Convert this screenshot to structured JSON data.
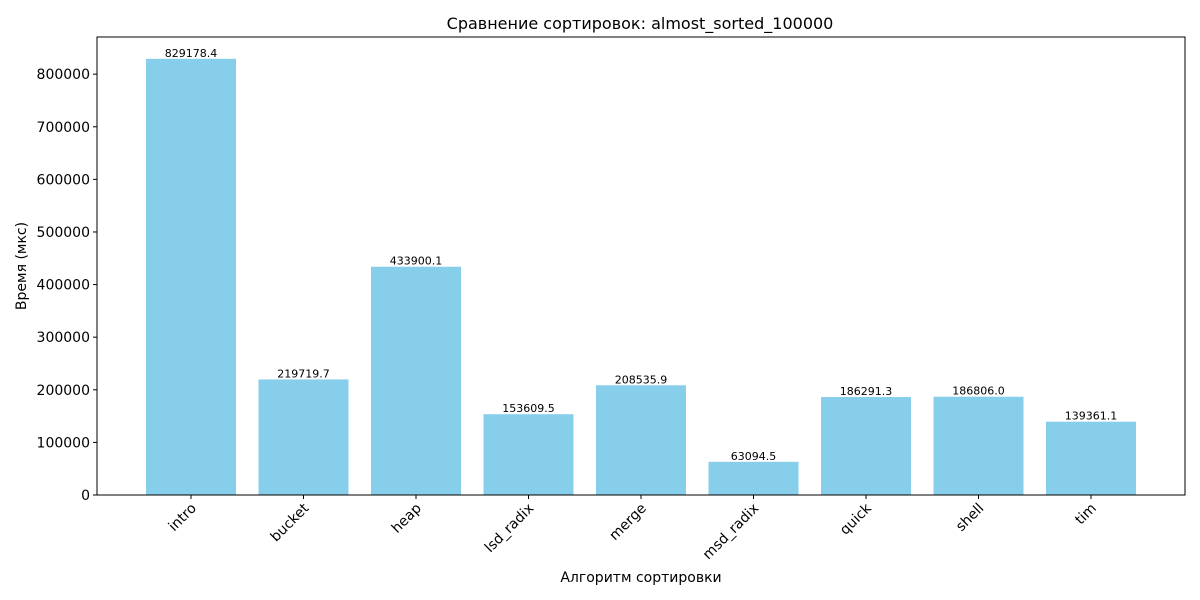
{
  "chart_data": {
    "type": "bar",
    "title": "Сравнение сортировок: almost_sorted_100000",
    "xlabel": "Алгоритм сортировки",
    "ylabel": "Время (мкс)",
    "categories": [
      "intro",
      "bucket",
      "heap",
      "lsd_radix",
      "merge",
      "msd_radix",
      "quick",
      "shell",
      "tim"
    ],
    "values": [
      829178.4,
      219719.7,
      433900.1,
      153609.5,
      208535.9,
      63094.5,
      186291.3,
      186806.0,
      139361.1
    ],
    "value_labels": [
      "829178.4",
      "219719.7",
      "433900.1",
      "153609.5",
      "208535.9",
      "63094.5",
      "186291.3",
      "186806.0",
      "139361.1"
    ],
    "yticks": [
      0,
      100000,
      200000,
      300000,
      400000,
      500000,
      600000,
      700000,
      800000
    ],
    "ylim": [
      0,
      870637
    ],
    "grid": false,
    "bar_color": "#87ceeb"
  }
}
